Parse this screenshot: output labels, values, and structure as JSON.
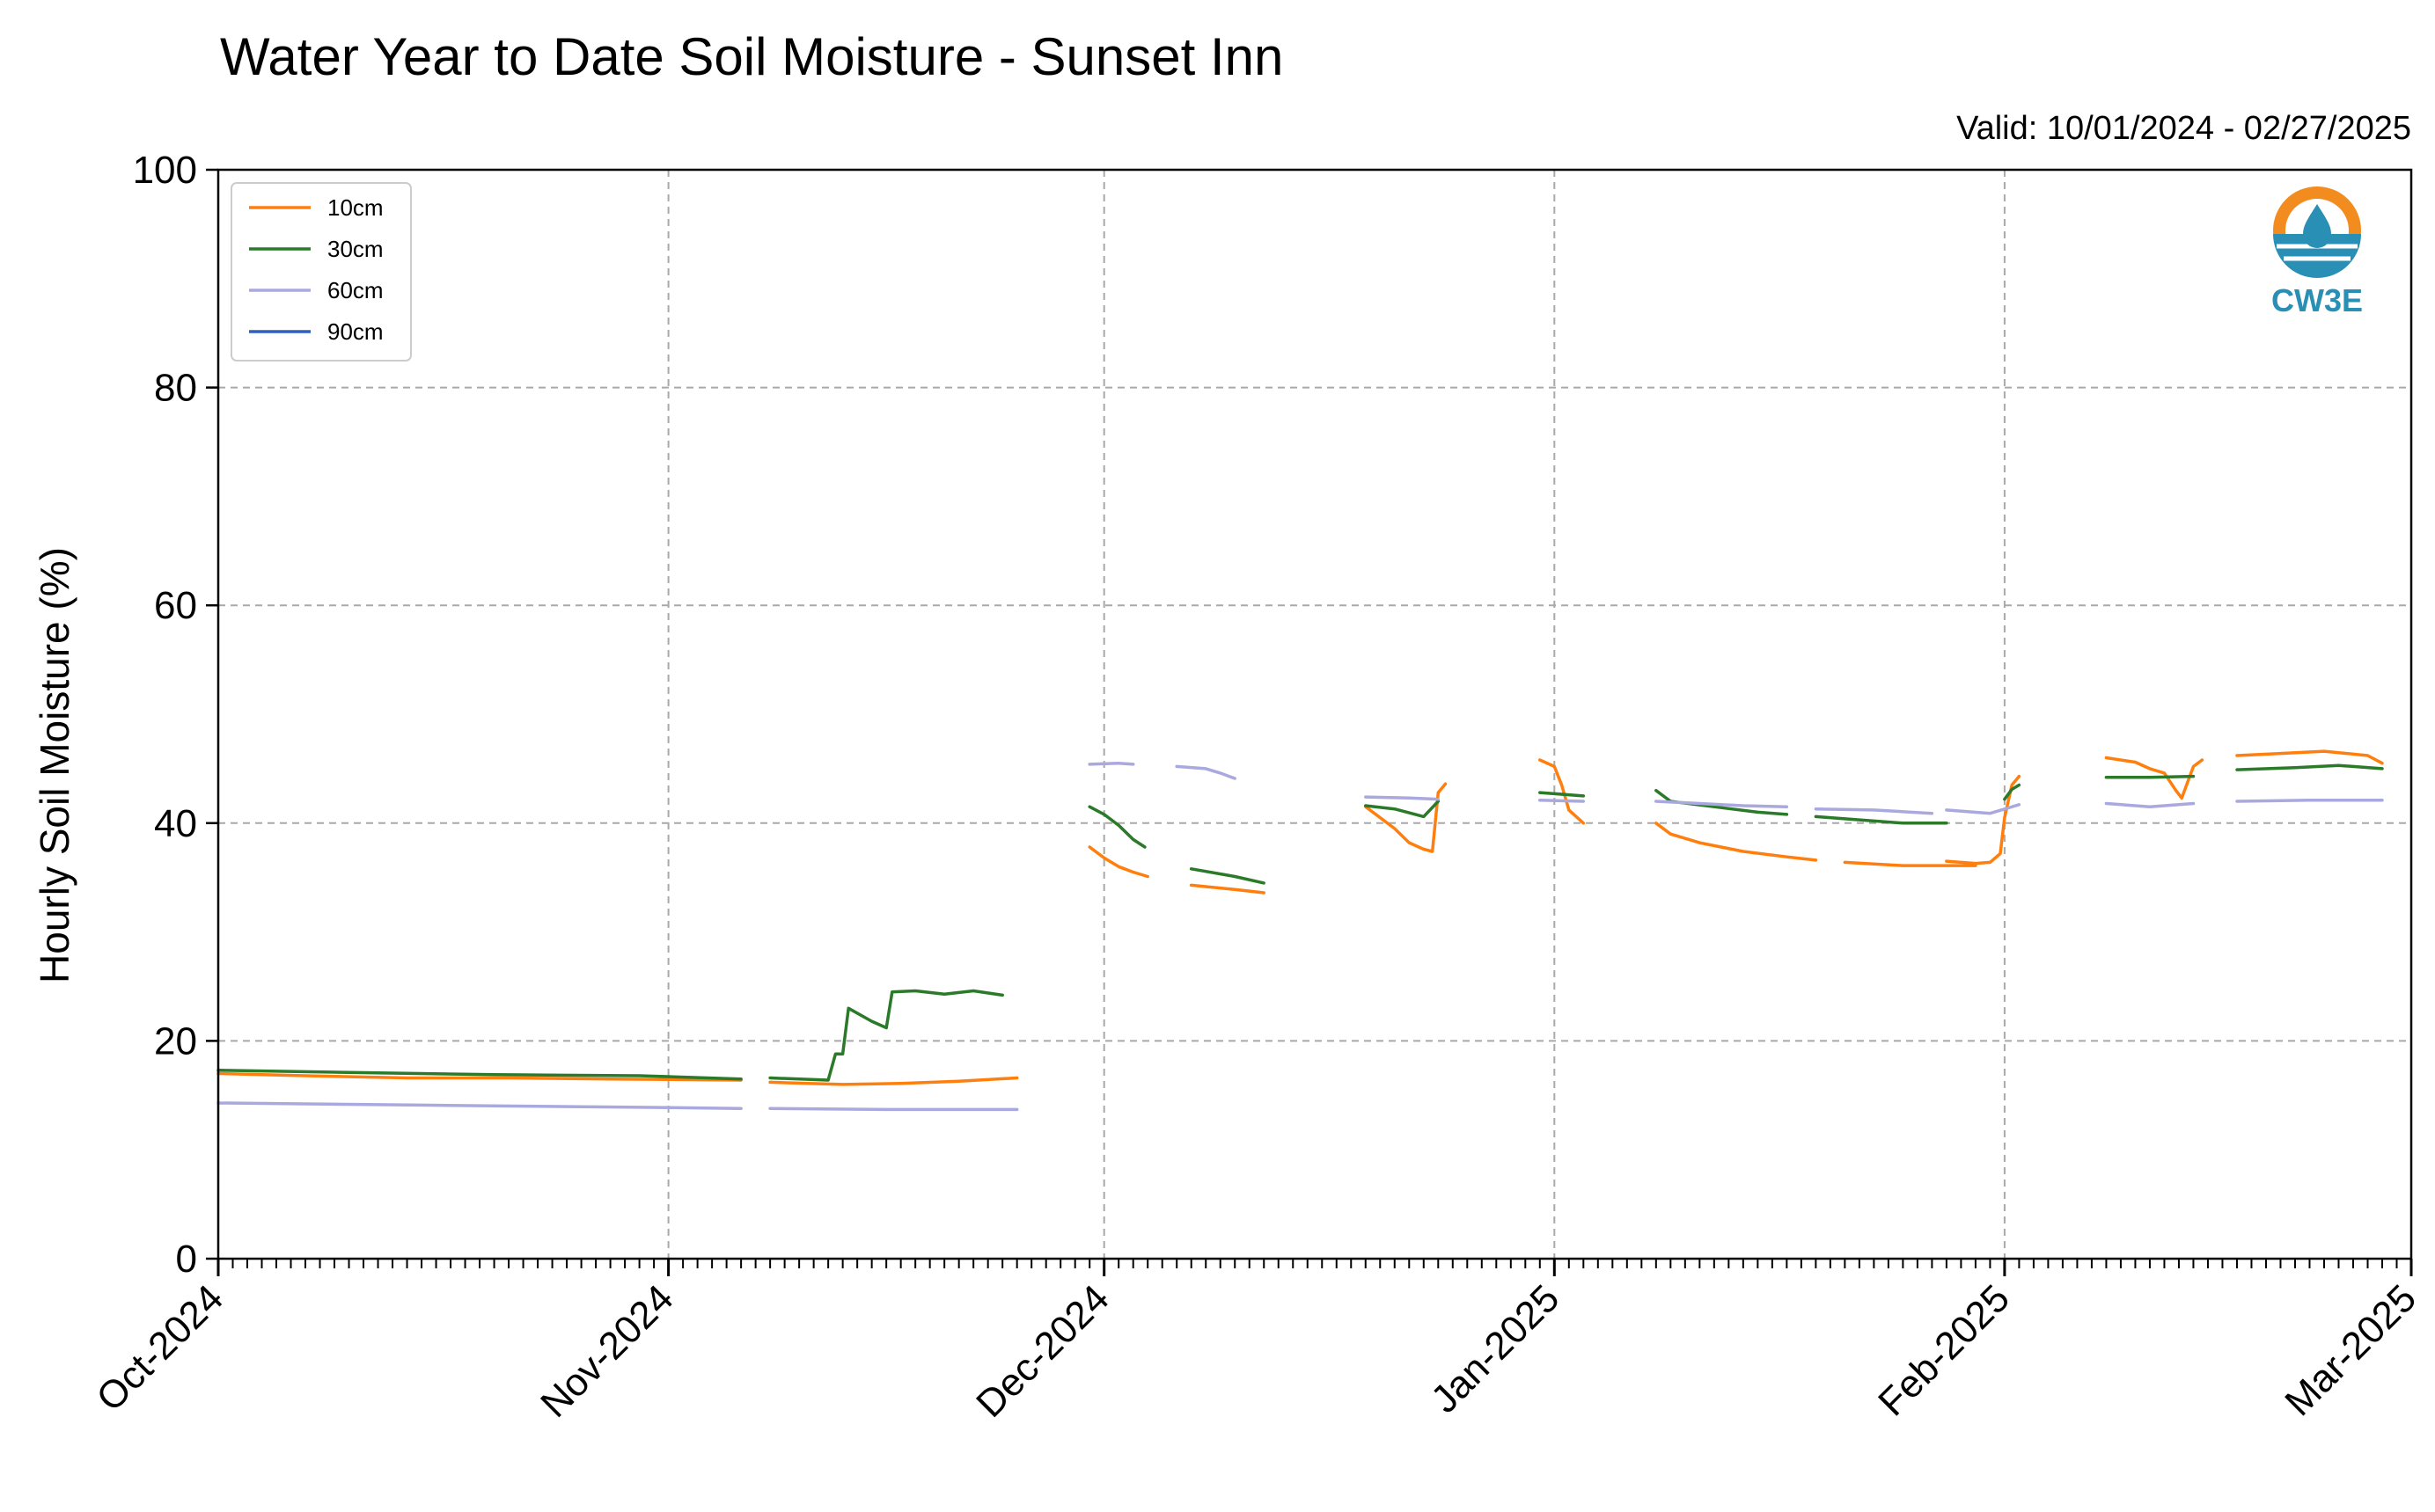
{
  "chart_data": {
    "type": "line",
    "title": "Water Year to Date Soil Moisture - Sunset Inn",
    "subtitle": "Valid: 10/01/2024 - 02/27/2025",
    "xlabel": "",
    "ylabel": "Hourly Soil Moisture (%)",
    "ylim": [
      0,
      100
    ],
    "xlim": [
      "2024-10-01",
      "2025-03-01"
    ],
    "yticks": [
      0,
      20,
      40,
      60,
      80,
      100
    ],
    "xticks": [
      {
        "date": "2024-10-01",
        "label": "Oct-2024"
      },
      {
        "date": "2024-11-01",
        "label": "Nov-2024"
      },
      {
        "date": "2024-12-01",
        "label": "Dec-2024"
      },
      {
        "date": "2025-01-01",
        "label": "Jan-2025"
      },
      {
        "date": "2025-02-01",
        "label": "Feb-2025"
      },
      {
        "date": "2025-03-01",
        "label": "Mar-2025"
      }
    ],
    "grid": true,
    "legend": "top-left",
    "logo": "CW3E",
    "series": [
      {
        "name": "10cm",
        "color": "#ff7f0e",
        "segments": [
          [
            [
              "2024-10-01",
              17.0
            ],
            [
              "2024-10-07",
              16.8
            ],
            [
              "2024-10-14",
              16.6
            ],
            [
              "2024-10-21",
              16.6
            ],
            [
              "2024-10-28",
              16.5
            ],
            [
              "2024-11-06",
              16.4
            ]
          ],
          [
            [
              "2024-11-08",
              16.2
            ],
            [
              "2024-11-13",
              16.0
            ],
            [
              "2024-11-17",
              16.1
            ],
            [
              "2024-11-21",
              16.3
            ],
            [
              "2024-11-25",
              16.6
            ]
          ],
          [
            [
              "2024-11-30",
              37.8
            ],
            [
              "2024-12-01",
              36.8
            ],
            [
              "2024-12-02",
              36.0
            ],
            [
              "2024-12-03",
              35.5
            ],
            [
              "2024-12-04",
              35.1
            ]
          ],
          [
            [
              "2024-12-07",
              34.3
            ],
            [
              "2024-12-10",
              33.9
            ],
            [
              "2024-12-12",
              33.6
            ]
          ],
          [
            [
              "2024-12-19",
              41.5
            ],
            [
              "2024-12-21",
              39.5
            ],
            [
              "2024-12-22",
              38.2
            ],
            [
              "2024-12-23",
              37.6
            ],
            [
              "2024-12-23.6",
              37.4
            ],
            [
              "2024-12-24",
              42.8
            ],
            [
              "2024-12-24.5",
              43.6
            ]
          ],
          [
            [
              "2024-12-31",
              45.8
            ],
            [
              "2025-01-01",
              45.2
            ],
            [
              "2025-01-01.5",
              43.5
            ],
            [
              "2025-01-02",
              41.2
            ],
            [
              "2025-01-03",
              40.0
            ]
          ],
          [
            [
              "2025-01-08",
              40.0
            ],
            [
              "2025-01-09",
              39.0
            ],
            [
              "2025-01-11",
              38.2
            ],
            [
              "2025-01-14",
              37.4
            ],
            [
              "2025-01-17",
              36.9
            ],
            [
              "2025-01-19",
              36.6
            ]
          ],
          [
            [
              "2025-01-21",
              36.4
            ],
            [
              "2025-01-25",
              36.1
            ],
            [
              "2025-01-30",
              36.1
            ]
          ],
          [
            [
              "2025-01-28",
              36.5
            ],
            [
              "2025-01-30",
              36.3
            ],
            [
              "2025-01-31",
              36.4
            ],
            [
              "2025-01-31.7",
              37.2
            ],
            [
              "2025-02-01",
              40.5
            ],
            [
              "2025-02-01.5",
              43.5
            ],
            [
              "2025-02-02",
              44.3
            ]
          ],
          [
            [
              "2025-02-08",
              46.0
            ],
            [
              "2025-02-10",
              45.6
            ],
            [
              "2025-02-11",
              45.0
            ],
            [
              "2025-02-12",
              44.6
            ],
            [
              "2025-02-12.8",
              43.0
            ],
            [
              "2025-02-13.2",
              42.3
            ],
            [
              "2025-02-14",
              45.2
            ],
            [
              "2025-02-14.6",
              45.8
            ]
          ],
          [
            [
              "2025-02-17",
              46.2
            ],
            [
              "2025-02-20",
              46.4
            ],
            [
              "2025-02-23",
              46.6
            ],
            [
              "2025-02-26",
              46.2
            ],
            [
              "2025-02-27",
              45.5
            ]
          ]
        ]
      },
      {
        "name": "30cm",
        "color": "#2a7a2a",
        "segments": [
          [
            [
              "2024-10-01",
              17.3
            ],
            [
              "2024-10-10",
              17.1
            ],
            [
              "2024-10-20",
              16.9
            ],
            [
              "2024-10-30",
              16.8
            ],
            [
              "2024-11-06",
              16.5
            ]
          ],
          [
            [
              "2024-11-08",
              16.6
            ],
            [
              "2024-11-12",
              16.4
            ],
            [
              "2024-11-12.5",
              18.8
            ],
            [
              "2024-11-13",
              18.8
            ],
            [
              "2024-11-13.4",
              23.0
            ],
            [
              "2024-11-15",
              21.8
            ],
            [
              "2024-11-16",
              21.2
            ],
            [
              "2024-11-16.4",
              24.5
            ],
            [
              "2024-11-18",
              24.6
            ],
            [
              "2024-11-20",
              24.3
            ],
            [
              "2024-11-22",
              24.6
            ],
            [
              "2024-11-24",
              24.2
            ]
          ],
          [
            [
              "2024-11-30",
              41.5
            ],
            [
              "2024-12-01",
              40.8
            ],
            [
              "2024-12-02",
              39.8
            ],
            [
              "2024-12-03",
              38.5
            ],
            [
              "2024-12-03.8",
              37.8
            ]
          ],
          [
            [
              "2024-12-07",
              35.8
            ],
            [
              "2024-12-10",
              35.1
            ],
            [
              "2024-12-12",
              34.5
            ]
          ],
          [
            [
              "2024-12-19",
              41.6
            ],
            [
              "2024-12-21",
              41.3
            ],
            [
              "2024-12-23",
              40.6
            ],
            [
              "2024-12-24",
              42.0
            ]
          ],
          [
            [
              "2024-12-31",
              42.8
            ],
            [
              "2025-01-02",
              42.6
            ],
            [
              "2025-01-03",
              42.5
            ]
          ],
          [
            [
              "2025-01-08",
              43.0
            ],
            [
              "2025-01-09",
              42.0
            ],
            [
              "2025-01-12",
              41.5
            ],
            [
              "2025-01-15",
              41.0
            ],
            [
              "2025-01-17",
              40.8
            ]
          ],
          [
            [
              "2025-01-19",
              40.6
            ],
            [
              "2025-01-22",
              40.3
            ],
            [
              "2025-01-25",
              40.0
            ],
            [
              "2025-01-28",
              40.0
            ]
          ],
          [
            [
              "2025-02-01",
              42.2
            ],
            [
              "2025-02-01.5",
              43.1
            ],
            [
              "2025-02-02",
              43.5
            ]
          ],
          [
            [
              "2025-02-08",
              44.2
            ],
            [
              "2025-02-11",
              44.2
            ],
            [
              "2025-02-14",
              44.3
            ]
          ],
          [
            [
              "2025-02-17",
              44.9
            ],
            [
              "2025-02-21",
              45.1
            ],
            [
              "2025-02-24",
              45.3
            ],
            [
              "2025-02-27",
              45.0
            ]
          ]
        ]
      },
      {
        "name": "60cm",
        "color": "#a9a9df",
        "segments": [
          [
            [
              "2024-10-01",
              14.3
            ],
            [
              "2024-10-15",
              14.1
            ],
            [
              "2024-10-30",
              13.9
            ],
            [
              "2024-11-06",
              13.8
            ]
          ],
          [
            [
              "2024-11-08",
              13.8
            ],
            [
              "2024-11-16",
              13.7
            ],
            [
              "2024-11-25",
              13.7
            ]
          ],
          [
            [
              "2024-11-30",
              45.4
            ],
            [
              "2024-12-02",
              45.5
            ],
            [
              "2024-12-03",
              45.4
            ]
          ],
          [
            [
              "2024-12-06",
              45.2
            ],
            [
              "2024-12-08",
              45.0
            ],
            [
              "2024-12-09",
              44.6
            ],
            [
              "2024-12-10",
              44.1
            ]
          ],
          [
            [
              "2024-12-19",
              42.4
            ],
            [
              "2024-12-22",
              42.3
            ],
            [
              "2024-12-24",
              42.2
            ]
          ],
          [
            [
              "2024-12-31",
              42.1
            ],
            [
              "2025-01-03",
              42.0
            ]
          ],
          [
            [
              "2025-01-08",
              42.0
            ],
            [
              "2025-01-11",
              41.8
            ],
            [
              "2025-01-14",
              41.6
            ],
            [
              "2025-01-17",
              41.5
            ]
          ],
          [
            [
              "2025-01-19",
              41.3
            ],
            [
              "2025-01-23",
              41.2
            ],
            [
              "2025-01-27",
              40.9
            ]
          ],
          [
            [
              "2025-01-28",
              41.2
            ],
            [
              "2025-01-31",
              40.9
            ],
            [
              "2025-02-02",
              41.7
            ]
          ],
          [
            [
              "2025-02-08",
              41.8
            ],
            [
              "2025-02-11",
              41.5
            ],
            [
              "2025-02-14",
              41.8
            ]
          ],
          [
            [
              "2025-02-17",
              42.0
            ],
            [
              "2025-02-22",
              42.1
            ],
            [
              "2025-02-27",
              42.1
            ]
          ]
        ]
      },
      {
        "name": "90cm",
        "color": "#2f5fbf",
        "segments": []
      }
    ]
  }
}
